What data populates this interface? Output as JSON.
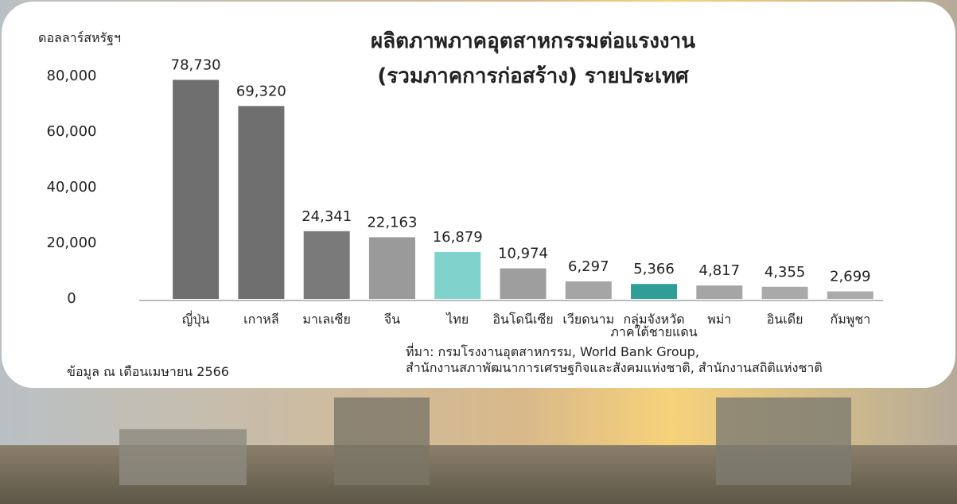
{
  "chart_data": {
    "type": "bar",
    "title": "ผลิตภาพภาคอุตสาหกรรมต่อแรงงาน\n(รวมภาคการก่อสร้าง) รายประเทศ",
    "ylabel": "ดอลลาร์สหรัฐฯ",
    "categories": [
      "ญี่ปุ่น",
      "เกาหลี",
      "มาเลเซีย",
      "จีน",
      "ไทย",
      "อินโดนีเซีย",
      "เวียดนาม",
      "กลุ่มจังหวัด\nภาคใต้ชายแดน",
      "พม่า",
      "อินเดีย",
      "กัมพูชา"
    ],
    "values": [
      78730,
      69320,
      24341,
      22163,
      16879,
      10974,
      6297,
      5366,
      4817,
      4355,
      2699
    ],
    "value_labels": [
      "78,730",
      "69,320",
      "24,341",
      "22,163",
      "16,879",
      "10,974",
      "6,297",
      "5,366",
      "4,817",
      "4,355",
      "2,699"
    ],
    "colors": [
      "#6f6f6f",
      "#6f6f6f",
      "#7a7a7a",
      "#9a9a9a",
      "#7fd3cc",
      "#9e9e9e",
      "#a5a5a5",
      "#2f9e96",
      "#a5a5a5",
      "#a9a9a9",
      "#ababab"
    ],
    "ylim": [
      0,
      80000
    ],
    "yticks": [
      0,
      {
        "value": 20000,
        "label": "20,000"
      },
      {
        "value": 40000,
        "label": "40,000"
      },
      {
        "value": 60000,
        "label": "60,000"
      },
      {
        "value": 80000,
        "label": "80,000"
      }
    ],
    "source": "ที่มา: กรมโรงงานอุตสาหกรรม, World Bank Group,\nสำนักงานสภาพัฒนาการเศรษฐกิจและสังคมแห่งชาติ, สำนักงานสถิติแห่งชาติ",
    "note": "ข้อมูล ณ เดือนเมษายน 2566"
  }
}
